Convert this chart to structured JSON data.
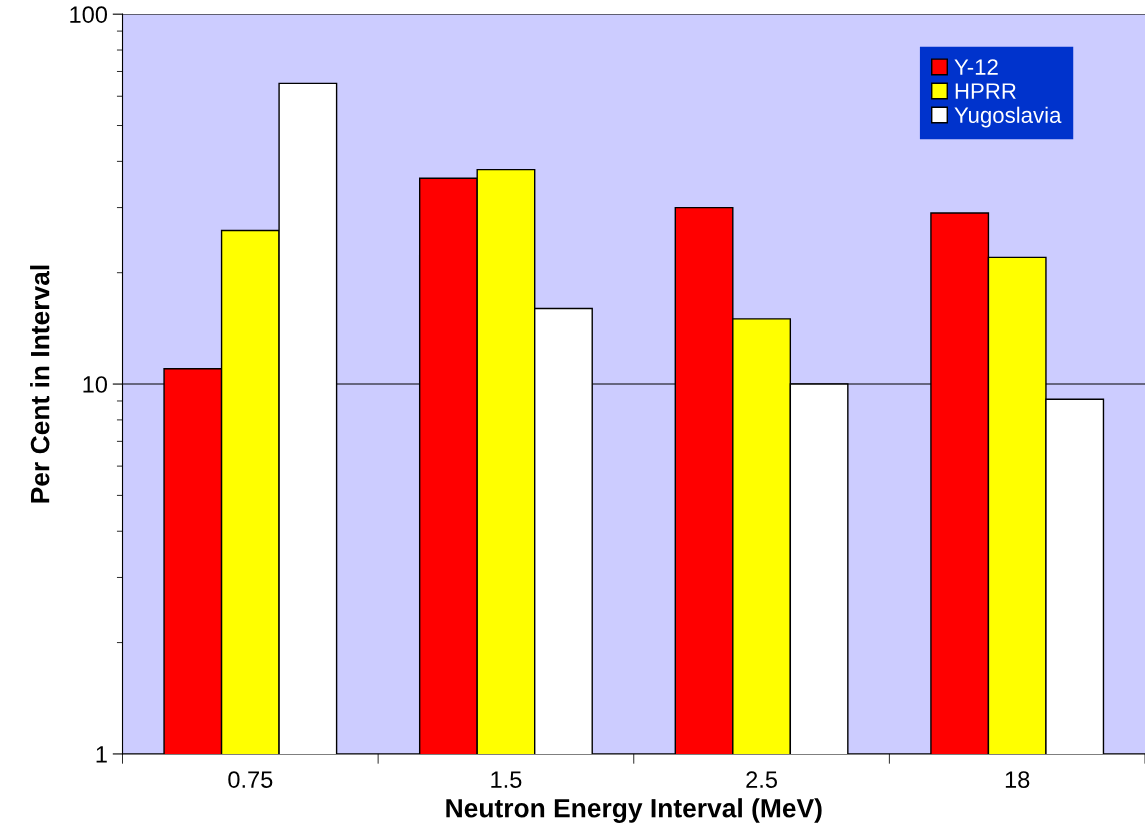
{
  "chart_data": {
    "type": "bar",
    "xlabel": "Neutron Energy Interval (MeV)",
    "ylabel": "Per Cent in Interval",
    "categories": [
      "0.75",
      "1.5",
      "2.5",
      "18"
    ],
    "series": [
      {
        "name": "Y-12",
        "color": "#ff0000",
        "values": [
          11,
          36,
          30,
          29
        ]
      },
      {
        "name": "HPRR",
        "color": "#ffff00",
        "values": [
          26,
          38,
          15,
          22
        ]
      },
      {
        "name": "Yugoslavia",
        "color": "#ffffff",
        "values": [
          65,
          16,
          10,
          9.1
        ]
      }
    ],
    "log": true,
    "ylim": [
      1,
      100
    ],
    "yticks": [
      1,
      10,
      100
    ],
    "grid": "y",
    "legend": "top right"
  }
}
